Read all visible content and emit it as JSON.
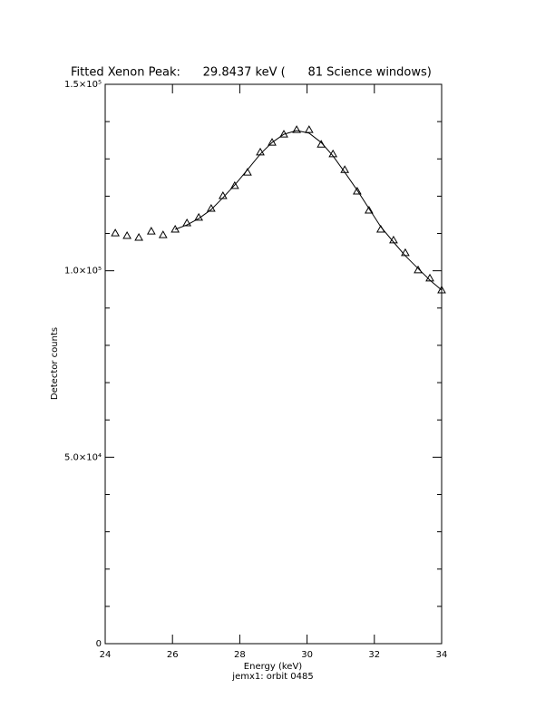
{
  "chart_data": {
    "type": "scatter",
    "title": "Fitted Xenon Peak:      29.8437 keV (      81 Science windows)",
    "xlabel": "Energy (keV)",
    "ylabel": "Detector counts",
    "footnote": "jemx1: orbit 0485",
    "xlim": [
      24,
      34
    ],
    "xticks": [
      24,
      26,
      28,
      30,
      32,
      34
    ],
    "ylim": [
      0,
      150000
    ],
    "yticks": [
      {
        "value": 0,
        "label": "0"
      },
      {
        "value": 50000,
        "label": "5.0×10⁴"
      },
      {
        "value": 100000,
        "label": "1.0×10⁵"
      },
      {
        "value": 150000,
        "label": "1.5×10⁵"
      }
    ],
    "yminorticks": [
      10000,
      20000,
      30000,
      40000,
      60000,
      70000,
      80000,
      90000,
      110000,
      120000,
      130000,
      140000
    ],
    "series": [
      {
        "kind": "points",
        "color": "#000000",
        "x": [
          24.3,
          24.65,
          25.0,
          25.37,
          25.72,
          26.08,
          26.43,
          26.78,
          27.15,
          27.5,
          27.85,
          28.23,
          28.61,
          28.96,
          29.31,
          29.69,
          30.06,
          30.42,
          30.77,
          31.12,
          31.49,
          31.84,
          32.19,
          32.57,
          32.92,
          33.3,
          33.65,
          34.0
        ],
        "values": [
          110100,
          109400,
          108900,
          110600,
          109600,
          111100,
          112800,
          114300,
          116700,
          120100,
          122800,
          126400,
          131800,
          134400,
          136600,
          137800,
          137800,
          133900,
          131300,
          127100,
          121300,
          116200,
          111100,
          108200,
          104800,
          100200,
          98000,
          94800
        ]
      },
      {
        "kind": "line",
        "color": "#000000",
        "x": [
          26.08,
          26.43,
          26.78,
          27.15,
          27.5,
          27.85,
          28.23,
          28.61,
          28.96,
          29.31,
          29.69,
          30.06,
          30.42,
          30.77,
          31.12,
          31.49,
          31.84,
          32.19,
          32.57,
          32.92,
          33.3,
          33.65,
          34.0
        ],
        "values": [
          111100,
          112300,
          114000,
          116400,
          119600,
          123000,
          127100,
          131300,
          134400,
          136600,
          137600,
          136900,
          134400,
          130800,
          126400,
          121600,
          116700,
          111800,
          107700,
          104000,
          100600,
          97500,
          94800
        ]
      }
    ]
  }
}
